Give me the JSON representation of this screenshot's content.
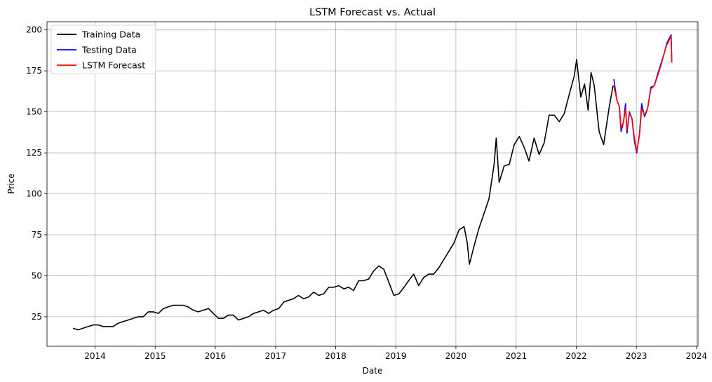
{
  "chart_data": {
    "type": "line",
    "title": "LSTM Forecast vs. Actual",
    "xlabel": "Date",
    "ylabel": "Price",
    "x_ticks": [
      "2014",
      "2015",
      "2016",
      "2017",
      "2018",
      "2019",
      "2020",
      "2021",
      "2022",
      "2023",
      "2024"
    ],
    "y_ticks": [
      25,
      50,
      75,
      100,
      125,
      150,
      175,
      200
    ],
    "xlim": [
      "2013-03-15",
      "2024-01-10"
    ],
    "ylim": [
      7,
      205
    ],
    "grid": true,
    "legend_position": "top-left",
    "series": [
      {
        "name": "Training Data",
        "color": "#000000",
        "points": [
          [
            "2013-08-20",
            18
          ],
          [
            "2013-09-20",
            17
          ],
          [
            "2013-10-20",
            18
          ],
          [
            "2013-11-20",
            19
          ],
          [
            "2013-12-20",
            20
          ],
          [
            "2014-01-20",
            20
          ],
          [
            "2014-02-20",
            19
          ],
          [
            "2014-03-20",
            19
          ],
          [
            "2014-04-20",
            19
          ],
          [
            "2014-05-20",
            21
          ],
          [
            "2014-06-20",
            22
          ],
          [
            "2014-07-20",
            23
          ],
          [
            "2014-08-20",
            24
          ],
          [
            "2014-09-20",
            25
          ],
          [
            "2014-10-20",
            25
          ],
          [
            "2014-11-20",
            28
          ],
          [
            "2014-12-20",
            28
          ],
          [
            "2015-01-20",
            27
          ],
          [
            "2015-02-20",
            30
          ],
          [
            "2015-03-20",
            31
          ],
          [
            "2015-04-20",
            32
          ],
          [
            "2015-05-20",
            32
          ],
          [
            "2015-06-20",
            32
          ],
          [
            "2015-07-20",
            31
          ],
          [
            "2015-08-20",
            29
          ],
          [
            "2015-09-20",
            28
          ],
          [
            "2015-10-20",
            29
          ],
          [
            "2015-11-20",
            30
          ],
          [
            "2015-12-20",
            27
          ],
          [
            "2016-01-20",
            24
          ],
          [
            "2016-02-20",
            24
          ],
          [
            "2016-03-20",
            26
          ],
          [
            "2016-04-20",
            26
          ],
          [
            "2016-05-20",
            23
          ],
          [
            "2016-06-20",
            24
          ],
          [
            "2016-07-20",
            25
          ],
          [
            "2016-08-20",
            27
          ],
          [
            "2016-09-20",
            28
          ],
          [
            "2016-10-20",
            29
          ],
          [
            "2016-11-20",
            27
          ],
          [
            "2016-12-20",
            29
          ],
          [
            "2017-01-20",
            30
          ],
          [
            "2017-02-20",
            34
          ],
          [
            "2017-03-20",
            35
          ],
          [
            "2017-04-20",
            36
          ],
          [
            "2017-05-20",
            38
          ],
          [
            "2017-06-20",
            36
          ],
          [
            "2017-07-20",
            37
          ],
          [
            "2017-08-20",
            40
          ],
          [
            "2017-09-20",
            38
          ],
          [
            "2017-10-20",
            39
          ],
          [
            "2017-11-20",
            43
          ],
          [
            "2017-12-20",
            43
          ],
          [
            "2018-01-20",
            44
          ],
          [
            "2018-02-20",
            42
          ],
          [
            "2018-03-20",
            43
          ],
          [
            "2018-04-20",
            41
          ],
          [
            "2018-05-20",
            47
          ],
          [
            "2018-06-20",
            47
          ],
          [
            "2018-07-20",
            48
          ],
          [
            "2018-08-20",
            53
          ],
          [
            "2018-09-20",
            56
          ],
          [
            "2018-10-20",
            54
          ],
          [
            "2018-11-20",
            46
          ],
          [
            "2018-12-20",
            38
          ],
          [
            "2019-01-20",
            39
          ],
          [
            "2019-02-20",
            43
          ],
          [
            "2019-03-20",
            47
          ],
          [
            "2019-04-20",
            51
          ],
          [
            "2019-05-20",
            44
          ],
          [
            "2019-06-20",
            49
          ],
          [
            "2019-07-20",
            51
          ],
          [
            "2019-08-20",
            51
          ],
          [
            "2019-09-20",
            55
          ],
          [
            "2019-10-20",
            60
          ],
          [
            "2019-11-20",
            65
          ],
          [
            "2019-12-20",
            70
          ],
          [
            "2020-01-20",
            78
          ],
          [
            "2020-02-20",
            80
          ],
          [
            "2020-03-10",
            70
          ],
          [
            "2020-03-23",
            57
          ],
          [
            "2020-04-20",
            68
          ],
          [
            "2020-05-20",
            79
          ],
          [
            "2020-06-20",
            88
          ],
          [
            "2020-07-20",
            97
          ],
          [
            "2020-08-20",
            118
          ],
          [
            "2020-09-02",
            134
          ],
          [
            "2020-09-20",
            107
          ],
          [
            "2020-10-20",
            117
          ],
          [
            "2020-11-20",
            118
          ],
          [
            "2020-12-20",
            130
          ],
          [
            "2021-01-20",
            135
          ],
          [
            "2021-02-20",
            128
          ],
          [
            "2021-03-20",
            120
          ],
          [
            "2021-04-20",
            134
          ],
          [
            "2021-05-20",
            124
          ],
          [
            "2021-06-20",
            131
          ],
          [
            "2021-07-20",
            148
          ],
          [
            "2021-08-20",
            148
          ],
          [
            "2021-09-20",
            144
          ],
          [
            "2021-10-20",
            149
          ],
          [
            "2021-11-20",
            161
          ],
          [
            "2021-12-20",
            172
          ],
          [
            "2022-01-03",
            182
          ],
          [
            "2022-01-28",
            159
          ],
          [
            "2022-02-20",
            167
          ],
          [
            "2022-03-14",
            151
          ],
          [
            "2022-04-01",
            174
          ],
          [
            "2022-04-20",
            166
          ],
          [
            "2022-05-20",
            138
          ],
          [
            "2022-06-16",
            130
          ],
          [
            "2022-07-20",
            153
          ],
          [
            "2022-08-12",
            166
          ]
        ]
      },
      {
        "name": "Testing Data",
        "color": "#0000ff",
        "points": [
          [
            "2022-08-17",
            170
          ],
          [
            "2022-09-05",
            157
          ],
          [
            "2022-09-20",
            153
          ],
          [
            "2022-09-30",
            138
          ],
          [
            "2022-10-15",
            144
          ],
          [
            "2022-10-27",
            155
          ],
          [
            "2022-11-05",
            137
          ],
          [
            "2022-11-20",
            150
          ],
          [
            "2022-12-05",
            146
          ],
          [
            "2022-12-20",
            132
          ],
          [
            "2023-01-03",
            125
          ],
          [
            "2023-01-20",
            137
          ],
          [
            "2023-02-02",
            155
          ],
          [
            "2023-02-20",
            147
          ],
          [
            "2023-03-10",
            152
          ],
          [
            "2023-03-30",
            165
          ],
          [
            "2023-04-20",
            166
          ],
          [
            "2023-05-10",
            173
          ],
          [
            "2023-06-01",
            180
          ],
          [
            "2023-06-20",
            186
          ],
          [
            "2023-07-05",
            192
          ],
          [
            "2023-07-20",
            195
          ],
          [
            "2023-07-31",
            197
          ],
          [
            "2023-08-04",
            181
          ]
        ]
      },
      {
        "name": "LSTM Forecast",
        "color": "#ff0000",
        "points": [
          [
            "2022-08-17",
            166
          ],
          [
            "2022-09-05",
            157
          ],
          [
            "2022-09-20",
            153
          ],
          [
            "2022-09-30",
            140
          ],
          [
            "2022-10-15",
            144
          ],
          [
            "2022-10-27",
            152
          ],
          [
            "2022-11-05",
            139
          ],
          [
            "2022-11-20",
            149
          ],
          [
            "2022-12-05",
            146
          ],
          [
            "2022-12-20",
            134
          ],
          [
            "2023-01-03",
            126
          ],
          [
            "2023-01-20",
            136
          ],
          [
            "2023-02-02",
            152
          ],
          [
            "2023-02-20",
            148
          ],
          [
            "2023-03-10",
            152
          ],
          [
            "2023-03-30",
            164
          ],
          [
            "2023-04-20",
            166
          ],
          [
            "2023-05-10",
            172
          ],
          [
            "2023-06-01",
            179
          ],
          [
            "2023-06-20",
            186
          ],
          [
            "2023-07-05",
            191
          ],
          [
            "2023-07-20",
            194
          ],
          [
            "2023-07-31",
            196
          ],
          [
            "2023-08-04",
            180
          ]
        ]
      }
    ]
  }
}
